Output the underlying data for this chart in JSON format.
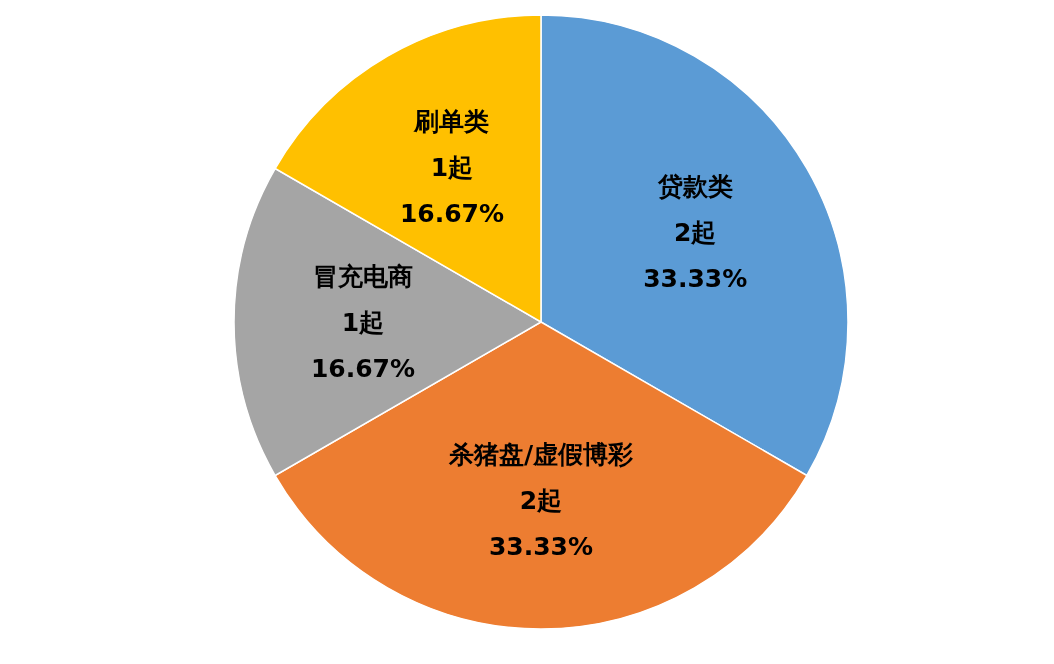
{
  "chart_data": {
    "type": "pie",
    "categories": [
      "贷款类",
      "杀猪盘/虚假博彩",
      "冒充电商",
      "刷单类"
    ],
    "values": [
      2,
      2,
      1,
      1
    ],
    "colors": [
      "#5b9bd5",
      "#ed7d31",
      "#a5a5a5",
      "#ffc000"
    ],
    "value_labels": [
      "2起\n33.33%",
      "2起\n33.33%",
      "1起\n16.67%",
      "1起\n16.67%"
    ]
  }
}
